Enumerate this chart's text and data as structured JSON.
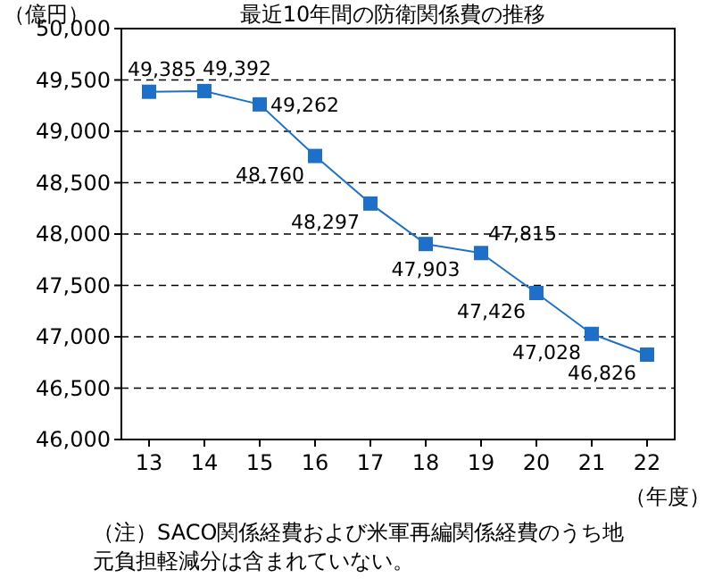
{
  "chart_data": {
    "type": "line",
    "title": "最近10年間の防衛関係費の推移",
    "ylabel": "（億円）",
    "xlabel": "（年度）",
    "categories": [
      "13",
      "14",
      "15",
      "16",
      "17",
      "18",
      "19",
      "20",
      "21",
      "22"
    ],
    "series": [
      {
        "color": "#1e6fc8",
        "values": [
          49385,
          49392,
          49262,
          48760,
          48297,
          47903,
          47815,
          47426,
          47028,
          46826
        ]
      }
    ],
    "ylim": [
      46000,
      50000
    ],
    "yticks": [
      {
        "value": 46000,
        "label": "46,000"
      },
      {
        "value": 46500,
        "label": "46,500"
      },
      {
        "value": 47000,
        "label": "47,000"
      },
      {
        "value": 47500,
        "label": "47,500"
      },
      {
        "value": 48000,
        "label": "48,000"
      },
      {
        "value": 48500,
        "label": "48,500"
      },
      {
        "value": 49000,
        "label": "49,000"
      },
      {
        "value": 49500,
        "label": "49,500"
      },
      {
        "value": 50000,
        "label": "50,000"
      }
    ],
    "grid": "y",
    "marker": "square",
    "line_style": "solid",
    "value_labels": [
      "49,385",
      "49,392",
      "49,262",
      "48,760",
      "48,297",
      "47,903",
      "47,815",
      "47,426",
      "47,028",
      "46,826"
    ],
    "annotations": [
      "（注）SACO関係経費および米軍再編関係経費のうち地元負担軽減分は含まれていない。"
    ]
  }
}
